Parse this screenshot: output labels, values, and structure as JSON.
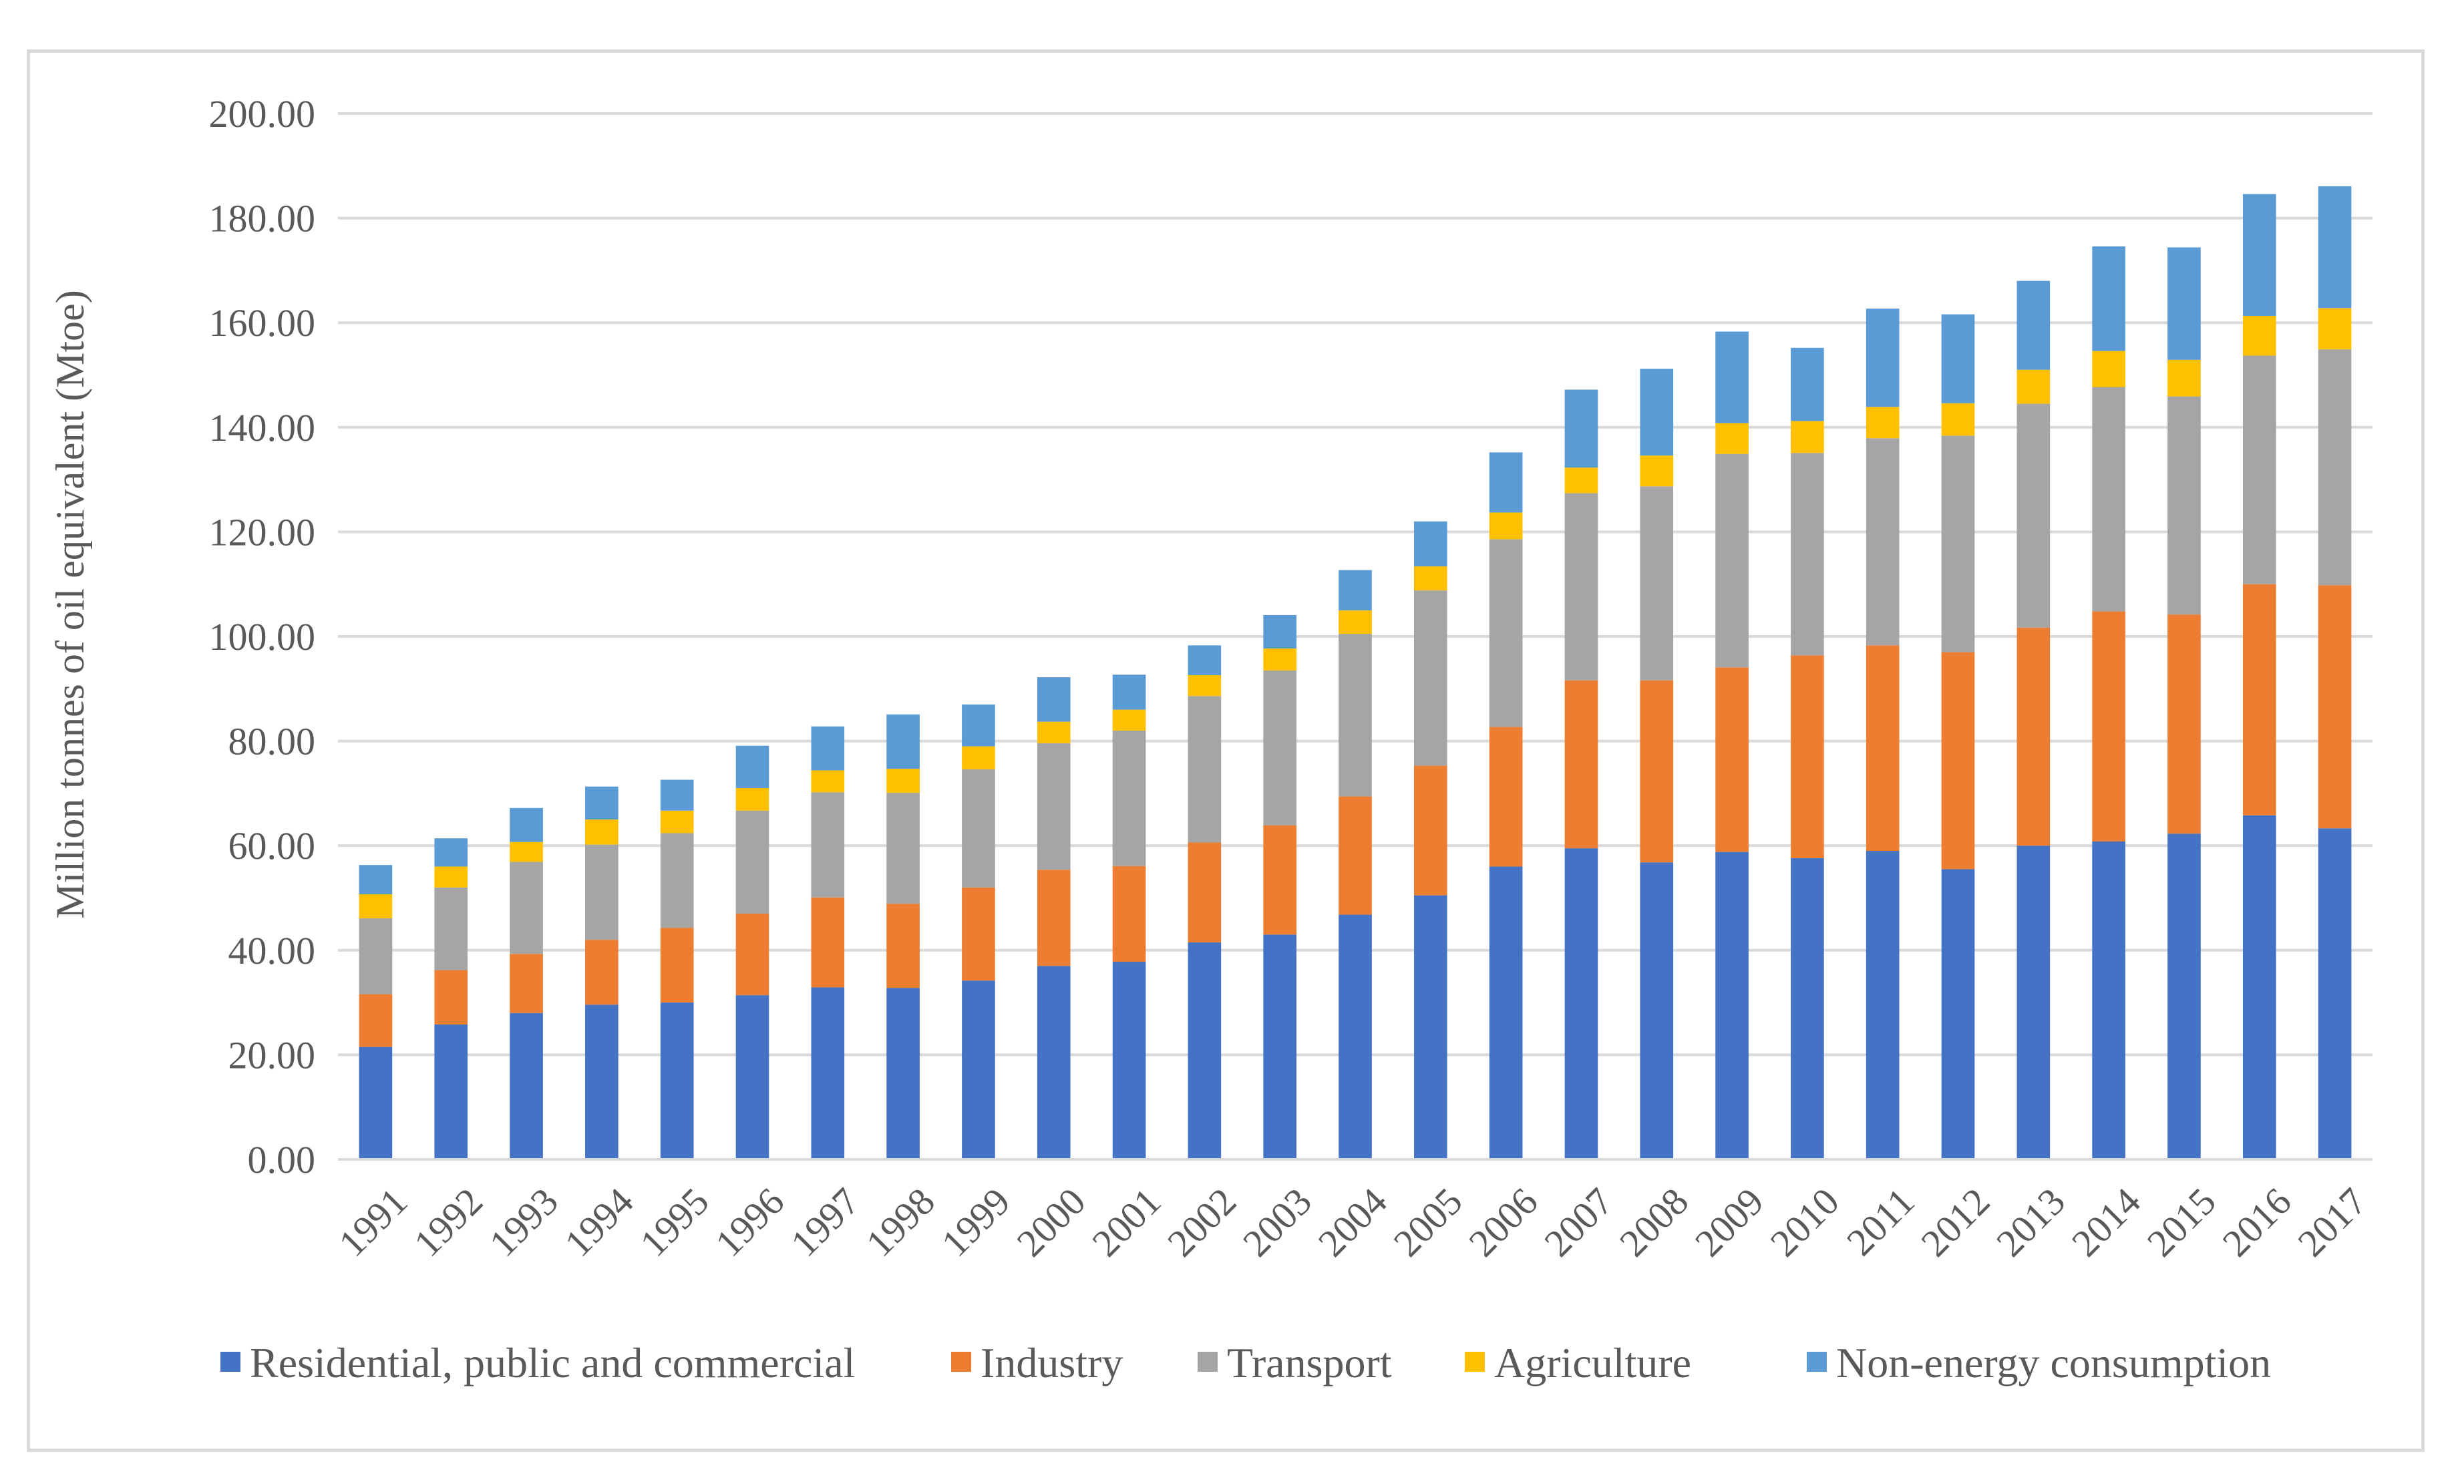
{
  "chart_data": {
    "type": "bar",
    "stacked": true,
    "title": "",
    "xlabel": "",
    "ylabel": "Million tonnes of oil equivalent (Mtoe)",
    "ylim": [
      0,
      200
    ],
    "y_ticks": [
      "0.00",
      "20.00",
      "40.00",
      "60.00",
      "80.00",
      "100.00",
      "120.00",
      "140.00",
      "160.00",
      "180.00",
      "200.00"
    ],
    "grid": true,
    "legend_position": "bottom",
    "categories": [
      "1991",
      "1992",
      "1993",
      "1994",
      "1995",
      "1996",
      "1997",
      "1998",
      "1999",
      "2000",
      "2001",
      "2002",
      "2003",
      "2004",
      "2005",
      "2006",
      "2007",
      "2008",
      "2009",
      "2010",
      "2011",
      "2012",
      "2013",
      "2014",
      "2015",
      "2016",
      "2017"
    ],
    "series": [
      {
        "name": "Residential, public and commercial",
        "color": "#4472c4",
        "values": [
          21.5,
          25.8,
          28.0,
          29.6,
          30.0,
          31.4,
          32.9,
          32.8,
          34.2,
          37.0,
          37.8,
          41.5,
          43.0,
          46.8,
          50.5,
          56.0,
          59.5,
          56.8,
          58.8,
          57.6,
          59.0,
          55.5,
          60.0,
          60.8,
          62.3,
          65.8,
          63.3
        ]
      },
      {
        "name": "Industry",
        "color": "#ed7d31",
        "values": [
          10.1,
          10.4,
          11.3,
          12.4,
          14.3,
          15.6,
          17.2,
          16.1,
          17.8,
          18.4,
          18.3,
          19.1,
          20.9,
          22.6,
          24.8,
          26.7,
          32.1,
          34.8,
          35.3,
          38.8,
          39.3,
          41.5,
          41.7,
          44.0,
          41.9,
          44.2,
          46.5
        ]
      },
      {
        "name": "Transport",
        "color": "#a5a5a5",
        "values": [
          14.5,
          15.8,
          17.6,
          18.2,
          18.1,
          19.7,
          20.1,
          21.2,
          22.6,
          24.2,
          25.9,
          28.0,
          29.6,
          31.1,
          33.5,
          35.9,
          35.8,
          37.1,
          40.8,
          38.7,
          39.6,
          41.4,
          42.8,
          42.9,
          41.7,
          43.7,
          45.1
        ]
      },
      {
        "name": "Agriculture",
        "color": "#ffc000",
        "values": [
          4.6,
          4.0,
          3.8,
          4.8,
          4.3,
          4.3,
          4.2,
          4.6,
          4.4,
          4.1,
          4.0,
          4.0,
          4.2,
          4.5,
          4.6,
          5.1,
          4.9,
          5.9,
          5.9,
          6.1,
          6.0,
          6.2,
          6.5,
          6.9,
          7.0,
          7.6,
          7.9
        ]
      },
      {
        "name": "Non-energy consumption",
        "color": "#5b9bd5",
        "values": [
          5.6,
          5.4,
          6.5,
          6.3,
          5.9,
          8.1,
          8.4,
          10.4,
          8.0,
          8.5,
          6.7,
          5.7,
          6.4,
          7.7,
          8.6,
          11.5,
          14.9,
          16.6,
          17.5,
          14.0,
          18.8,
          17.0,
          17.0,
          20.0,
          21.5,
          23.3,
          23.3
        ]
      }
    ]
  }
}
